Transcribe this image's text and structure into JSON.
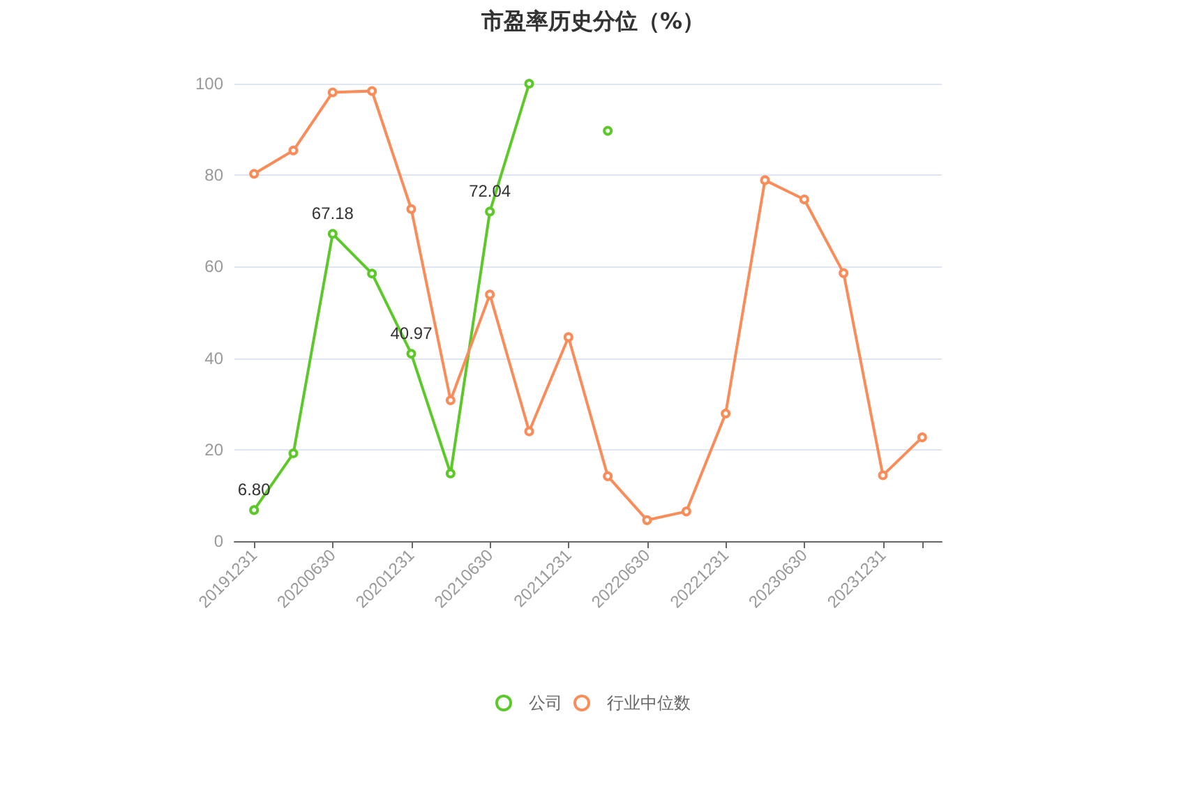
{
  "chart_data": {
    "type": "line",
    "title": "市盈率历史分位（%）",
    "categories": [
      "20191231",
      null,
      "20200630",
      null,
      "20201231",
      null,
      "20210630",
      null,
      "20211231",
      null,
      "20220630",
      null,
      "20221231",
      null,
      "20230630",
      null,
      "20231231",
      null
    ],
    "series": [
      {
        "name": "公司",
        "color": "#5cc82a",
        "values": [
          6.8,
          19.2,
          67.18,
          58.5,
          40.97,
          14.8,
          72.04,
          100,
          null,
          89.7,
          null,
          null,
          null,
          null,
          null,
          null,
          null,
          null
        ],
        "value_labels": [
          "6.80",
          null,
          "67.18",
          null,
          "40.97",
          null,
          "72.04",
          null,
          null,
          null,
          null,
          null,
          null,
          null,
          null,
          null,
          null,
          null
        ]
      },
      {
        "name": "行业中位数",
        "color": "#fa8c5a",
        "values": [
          80.3,
          85.4,
          98.1,
          98.4,
          72.6,
          30.8,
          53.9,
          24.0,
          44.6,
          14.2,
          4.6,
          6.5,
          27.9,
          78.9,
          74.7,
          58.6,
          14.4,
          22.7
        ]
      }
    ],
    "ylim": [
      0,
      100
    ],
    "yticks": [
      0,
      20,
      40,
      60,
      80,
      100
    ],
    "grid": "y",
    "legend": "bottom",
    "marker": "circle",
    "line_style": "solid"
  }
}
